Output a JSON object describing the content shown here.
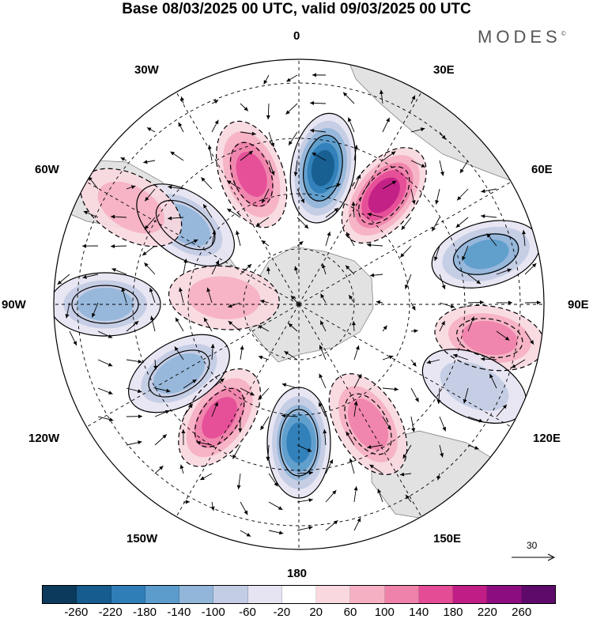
{
  "title": "Base 08/03/2025 00 UTC, valid 09/03/2025 00 UTC",
  "brand": {
    "name": "MODES",
    "mark": "©"
  },
  "longitude_labels": {
    "l0": "0",
    "l30e": "30E",
    "l60e": "60E",
    "l90e": "90E",
    "l120e": "120E",
    "l150e": "150E",
    "l180": "180",
    "l150w": "150W",
    "l120w": "120W",
    "l90w": "90W",
    "l60w": "60W",
    "l30w": "30W"
  },
  "vector_reference": "30",
  "colorbar": {
    "colors": [
      "#0c3a5c",
      "#165c8e",
      "#2f7eb8",
      "#5c9ccc",
      "#92b6da",
      "#c2cce4",
      "#e6e4f2",
      "#ffffff",
      "#f9d8df",
      "#f5b1c3",
      "#ef82aa",
      "#e44c96",
      "#c11d86",
      "#8c0d7f",
      "#5e0a6a"
    ],
    "tick_labels": [
      "-260",
      "-220",
      "-180",
      "-140",
      "-100",
      "-60",
      "-20",
      "20",
      "60",
      "100",
      "140",
      "180",
      "220",
      "260"
    ]
  },
  "map_data": {
    "projection": "south-polar-stereographic",
    "anomalies": [
      {
        "lon": 10,
        "lat_idx": 1,
        "value": -230
      },
      {
        "lon": 38,
        "lat_idx": 1,
        "value": 190
      },
      {
        "lon": -20,
        "lat_idx": 1,
        "value": 160
      },
      {
        "lon": -55,
        "lat_idx": 1,
        "value": -120
      },
      {
        "lon": 75,
        "lat_idx": 2,
        "value": -150
      },
      {
        "lon": 100,
        "lat_idx": 2,
        "value": 120
      },
      {
        "lon": 115,
        "lat_idx": 2,
        "value": -90
      },
      {
        "lon": 150,
        "lat_idx": 1,
        "value": 130
      },
      {
        "lon": 180,
        "lat_idx": 1,
        "value": -200
      },
      {
        "lon": -145,
        "lat_idx": 1,
        "value": 150
      },
      {
        "lon": -120,
        "lat_idx": 1,
        "value": -110
      },
      {
        "lon": -90,
        "lat_idx": 2,
        "value": -130
      },
      {
        "lon": -85,
        "lat_idx": 0,
        "value": 60
      },
      {
        "lon": -60,
        "lat_idx": 2,
        "value": 80
      }
    ]
  }
}
